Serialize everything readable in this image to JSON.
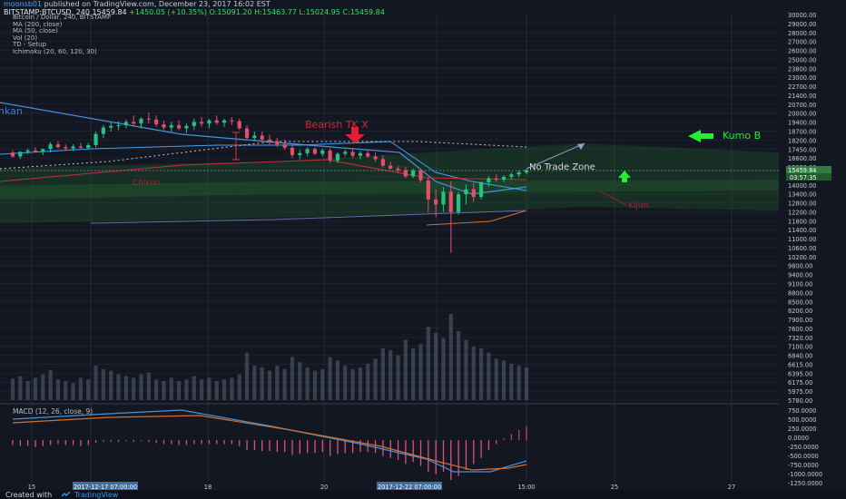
{
  "header": {
    "author": "moonsb01",
    "published": "published on TradingView.com, December 23, 2017 16:02 EST"
  },
  "quote": {
    "symbol": "BITSTAMP:BTCUSD, 240",
    "last": "15459.84",
    "change": "+1450.05 (+10.35%)",
    "open": "O:15091.20",
    "high": "H:15463.77",
    "low": "L:15024.95",
    "close": "C:15459.84"
  },
  "legend": [
    "Bitcoin / Dollar, 240, BITSTAMP",
    "MA (200, close)",
    "MA (50, close)",
    "Vol (20)",
    "TD - Setup",
    "Ichimoku (20, 60, 120, 30)"
  ],
  "macd_label": "MACD (12, 26, close, 9)",
  "footer": {
    "created": "Created with",
    "brand": "TradingView"
  },
  "colors": {
    "background": "#131722",
    "bull": "#26c281",
    "bear": "#e0506b",
    "annotation_red": "#e02030",
    "annotation_green": "#22ee33",
    "blue_line": "#4a90d9"
  },
  "chart_data": {
    "type": "candlestick",
    "price_axis": [
      "30000.00",
      "29000.00",
      "28000.00",
      "27000.00",
      "26000.00",
      "25000.00",
      "23800.00",
      "23000.00",
      "22700.00",
      "21400.00",
      "20700.00",
      "20000.00",
      "19400.00",
      "18700.00",
      "18200.00",
      "17450.00",
      "16600.00",
      "15950.00",
      "14600.00",
      "14000.00",
      "13400.00",
      "12800.00",
      "12200.00",
      "11800.00",
      "11400.00",
      "11000.00",
      "10600.00",
      "10200.00",
      "9800.00",
      "9400.00",
      "9100.00",
      "8800.00",
      "8500.00",
      "8200.00",
      "7900.00",
      "7600.00",
      "7320.00",
      "7100.00",
      "6840.00",
      "6615.00",
      "6395.00",
      "6175.00",
      "5975.00",
      "5780.00"
    ],
    "last_price_label": "15459.84",
    "countdown_label": "03:57:35",
    "macd_axis": [
      "750.0000",
      "500.0000",
      "250.0000",
      "0.0000",
      "-250.0000",
      "-500.0000",
      "-750.0000",
      "-1000.0000",
      "-1250.0000"
    ],
    "time_axis": [
      "15",
      "2017-12-17 07:00:00",
      "18",
      "20",
      "2017-12-22 07:00:00",
      "15:00",
      "25",
      "27"
    ],
    "candles": [
      {
        "o": 16900,
        "h": 17100,
        "l": 16500,
        "c": 16600
      },
      {
        "o": 16600,
        "h": 17000,
        "l": 16400,
        "c": 16950
      },
      {
        "o": 16950,
        "h": 17200,
        "l": 16800,
        "c": 17050
      },
      {
        "o": 17050,
        "h": 17300,
        "l": 16900,
        "c": 16950
      },
      {
        "o": 16950,
        "h": 17200,
        "l": 16700,
        "c": 17150
      },
      {
        "o": 17150,
        "h": 17650,
        "l": 16900,
        "c": 17500
      },
      {
        "o": 17500,
        "h": 17700,
        "l": 17200,
        "c": 17300
      },
      {
        "o": 17300,
        "h": 17500,
        "l": 17100,
        "c": 17200
      },
      {
        "o": 17200,
        "h": 17500,
        "l": 17000,
        "c": 17350
      },
      {
        "o": 17350,
        "h": 17600,
        "l": 17200,
        "c": 17250
      },
      {
        "o": 17250,
        "h": 17600,
        "l": 17100,
        "c": 17450
      },
      {
        "o": 17450,
        "h": 18300,
        "l": 17300,
        "c": 18150
      },
      {
        "o": 18150,
        "h": 18700,
        "l": 17900,
        "c": 18550
      },
      {
        "o": 18550,
        "h": 18900,
        "l": 18300,
        "c": 18650
      },
      {
        "o": 18650,
        "h": 18950,
        "l": 18400,
        "c": 18700
      },
      {
        "o": 18700,
        "h": 19050,
        "l": 18500,
        "c": 18900
      },
      {
        "o": 18900,
        "h": 19300,
        "l": 18600,
        "c": 18800
      },
      {
        "o": 18800,
        "h": 19200,
        "l": 18500,
        "c": 19100
      },
      {
        "o": 19100,
        "h": 19500,
        "l": 18800,
        "c": 19050
      },
      {
        "o": 19050,
        "h": 19300,
        "l": 18600,
        "c": 18750
      },
      {
        "o": 18750,
        "h": 19000,
        "l": 18400,
        "c": 18550
      },
      {
        "o": 18550,
        "h": 18900,
        "l": 18300,
        "c": 18700
      },
      {
        "o": 18700,
        "h": 19000,
        "l": 18400,
        "c": 18500
      },
      {
        "o": 18500,
        "h": 18800,
        "l": 18200,
        "c": 18650
      },
      {
        "o": 18650,
        "h": 19100,
        "l": 18400,
        "c": 18900
      },
      {
        "o": 18900,
        "h": 19200,
        "l": 18600,
        "c": 18800
      },
      {
        "o": 18800,
        "h": 19100,
        "l": 18500,
        "c": 19000
      },
      {
        "o": 19000,
        "h": 19300,
        "l": 18700,
        "c": 18850
      },
      {
        "o": 18850,
        "h": 19100,
        "l": 18600,
        "c": 19000
      },
      {
        "o": 19000,
        "h": 19200,
        "l": 18700,
        "c": 18950
      },
      {
        "o": 18950,
        "h": 19100,
        "l": 18400,
        "c": 18500
      },
      {
        "o": 18500,
        "h": 18700,
        "l": 17800,
        "c": 17900
      },
      {
        "o": 17900,
        "h": 18300,
        "l": 17700,
        "c": 18050
      },
      {
        "o": 18050,
        "h": 18300,
        "l": 17700,
        "c": 17800
      },
      {
        "o": 17800,
        "h": 18100,
        "l": 17500,
        "c": 17700
      },
      {
        "o": 17700,
        "h": 17900,
        "l": 17300,
        "c": 17500
      },
      {
        "o": 17500,
        "h": 17800,
        "l": 17100,
        "c": 17250
      },
      {
        "o": 17250,
        "h": 17400,
        "l": 16500,
        "c": 16700
      },
      {
        "o": 16700,
        "h": 17100,
        "l": 16400,
        "c": 16850
      },
      {
        "o": 16850,
        "h": 17300,
        "l": 16600,
        "c": 17150
      },
      {
        "o": 17150,
        "h": 17300,
        "l": 16700,
        "c": 16800
      },
      {
        "o": 16800,
        "h": 17200,
        "l": 16600,
        "c": 17050
      },
      {
        "o": 17050,
        "h": 17200,
        "l": 16100,
        "c": 16300
      },
      {
        "o": 16300,
        "h": 16900,
        "l": 16100,
        "c": 16800
      },
      {
        "o": 16800,
        "h": 17100,
        "l": 16600,
        "c": 16950
      },
      {
        "o": 16950,
        "h": 17200,
        "l": 16500,
        "c": 16650
      },
      {
        "o": 16650,
        "h": 17000,
        "l": 16400,
        "c": 16850
      },
      {
        "o": 16850,
        "h": 17050,
        "l": 16500,
        "c": 16600
      },
      {
        "o": 16600,
        "h": 16900,
        "l": 16200,
        "c": 16400
      },
      {
        "o": 16400,
        "h": 16700,
        "l": 15700,
        "c": 15900
      },
      {
        "o": 15900,
        "h": 16200,
        "l": 15500,
        "c": 15600
      },
      {
        "o": 15600,
        "h": 15900,
        "l": 15200,
        "c": 15450
      },
      {
        "o": 15450,
        "h": 15800,
        "l": 14600,
        "c": 14800
      },
      {
        "o": 14800,
        "h": 15600,
        "l": 14600,
        "c": 15400
      },
      {
        "o": 15400,
        "h": 15600,
        "l": 14200,
        "c": 14400
      },
      {
        "o": 14400,
        "h": 14700,
        "l": 12900,
        "c": 13400
      },
      {
        "o": 13400,
        "h": 13800,
        "l": 12700,
        "c": 13200
      },
      {
        "o": 13200,
        "h": 13900,
        "l": 12900,
        "c": 13700
      },
      {
        "o": 13700,
        "h": 14300,
        "l": 11300,
        "c": 12900
      },
      {
        "o": 12900,
        "h": 13700,
        "l": 12800,
        "c": 13600
      },
      {
        "o": 13600,
        "h": 14000,
        "l": 13200,
        "c": 13800
      },
      {
        "o": 13800,
        "h": 14100,
        "l": 13300,
        "c": 13500
      },
      {
        "o": 13500,
        "h": 14300,
        "l": 13400,
        "c": 14200
      },
      {
        "o": 14200,
        "h": 14800,
        "l": 13900,
        "c": 14600
      },
      {
        "o": 14600,
        "h": 15000,
        "l": 14200,
        "c": 14450
      },
      {
        "o": 14450,
        "h": 14900,
        "l": 14200,
        "c": 14750
      },
      {
        "o": 14750,
        "h": 15200,
        "l": 14500,
        "c": 15000
      },
      {
        "o": 15000,
        "h": 15400,
        "l": 14700,
        "c": 15200
      },
      {
        "o": 15200,
        "h": 15500,
        "l": 15000,
        "c": 15460
      }
    ],
    "volumes": [
      0.25,
      0.28,
      0.22,
      0.26,
      0.3,
      0.35,
      0.24,
      0.22,
      0.2,
      0.26,
      0.24,
      0.4,
      0.36,
      0.34,
      0.3,
      0.28,
      0.26,
      0.3,
      0.32,
      0.24,
      0.22,
      0.26,
      0.22,
      0.24,
      0.28,
      0.24,
      0.26,
      0.22,
      0.24,
      0.26,
      0.3,
      0.55,
      0.4,
      0.38,
      0.34,
      0.4,
      0.36,
      0.5,
      0.44,
      0.38,
      0.34,
      0.36,
      0.5,
      0.46,
      0.4,
      0.36,
      0.38,
      0.42,
      0.48,
      0.6,
      0.58,
      0.52,
      0.7,
      0.6,
      0.65,
      0.85,
      0.78,
      0.72,
      1.0,
      0.8,
      0.7,
      0.62,
      0.6,
      0.55,
      0.48,
      0.46,
      0.42,
      0.4,
      0.38
    ],
    "macd_hist": [
      -0.05,
      -0.06,
      -0.06,
      -0.07,
      -0.06,
      -0.05,
      -0.04,
      -0.05,
      -0.05,
      -0.06,
      -0.05,
      -0.03,
      -0.02,
      -0.02,
      -0.02,
      -0.01,
      -0.02,
      -0.01,
      -0.02,
      -0.03,
      -0.04,
      -0.04,
      -0.05,
      -0.05,
      -0.04,
      -0.04,
      -0.04,
      -0.04,
      -0.04,
      -0.04,
      -0.06,
      -0.1,
      -0.1,
      -0.11,
      -0.11,
      -0.12,
      -0.12,
      -0.15,
      -0.14,
      -0.13,
      -0.13,
      -0.12,
      -0.16,
      -0.14,
      -0.13,
      -0.13,
      -0.12,
      -0.12,
      -0.13,
      -0.16,
      -0.18,
      -0.2,
      -0.24,
      -0.22,
      -0.26,
      -0.32,
      -0.34,
      -0.32,
      -0.4,
      -0.36,
      -0.3,
      -0.24,
      -0.18,
      -0.1,
      -0.04,
      0.02,
      0.06,
      0.1,
      0.14
    ],
    "annotations": {
      "bearish": "Bearish TK X",
      "kumo": "Kumo B",
      "no_trade": "No Trade Zone",
      "kijun": "Kijun",
      "tenkan": "nkan",
      "chikou": "Chikou"
    }
  }
}
